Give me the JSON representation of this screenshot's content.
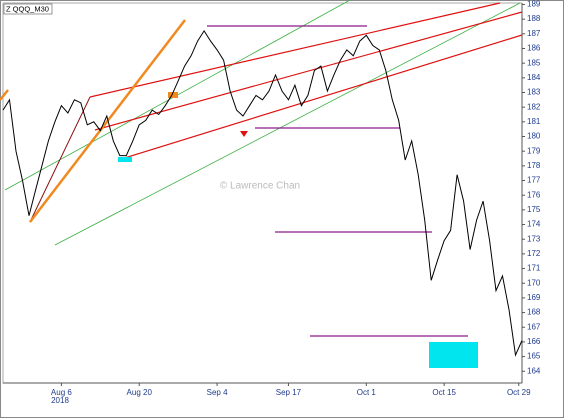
{
  "chart_data": {
    "type": "line",
    "title": "Z QQQ_M30",
    "watermark": "© Lawrence Chan",
    "year_label": "2018",
    "color": "#000000",
    "values": [
      181.8,
      182.5,
      179,
      177,
      174.6,
      176.3,
      178,
      179.7,
      181,
      182.1,
      181.6,
      182.5,
      182.3,
      180.8,
      181,
      180.4,
      181.4,
      179.7,
      178.7,
      178.7,
      179.7,
      180.8,
      181.1,
      181.8,
      181.5,
      182.1,
      182.8,
      183.8,
      184.8,
      185.5,
      186.5,
      187.2,
      186.5,
      185.9,
      185.2,
      183.1,
      181.8,
      181.4,
      182.1,
      182.8,
      182.5,
      183.1,
      184.2,
      183.1,
      182.5,
      183.5,
      182.1,
      182.8,
      184.5,
      184.8,
      183.1,
      184.2,
      185.2,
      185.9,
      185.5,
      186.5,
      186.9,
      186.2,
      185.9,
      184.5,
      182.5,
      181.1,
      178.4,
      179.7,
      177.4,
      174.3,
      170.2,
      171.6,
      172.9,
      173.6,
      177.4,
      175.6,
      172.3,
      174.3,
      175.6,
      172.9,
      169.5,
      170.5,
      168.2,
      165.1,
      166.1
    ],
    "xlim": [
      0,
      80
    ],
    "xticks": [
      {
        "value": 9,
        "label": "Aug 6"
      },
      {
        "value": 21,
        "label": "Aug 20"
      },
      {
        "value": 33,
        "label": "Sep 4"
      },
      {
        "value": 44,
        "label": "Sep 17"
      },
      {
        "value": 56,
        "label": "Oct 1"
      },
      {
        "value": 68,
        "label": "Oct 15"
      },
      {
        "value": 79.5,
        "label": "Oct 29"
      }
    ],
    "ylim": [
      163.2,
      189.1
    ],
    "yticks": [
      164,
      165,
      166,
      167,
      168,
      169,
      170,
      171,
      172,
      173,
      174,
      175,
      176,
      177,
      178,
      179,
      180,
      181,
      182,
      183,
      184,
      185,
      186,
      187,
      188,
      189
    ]
  }
}
